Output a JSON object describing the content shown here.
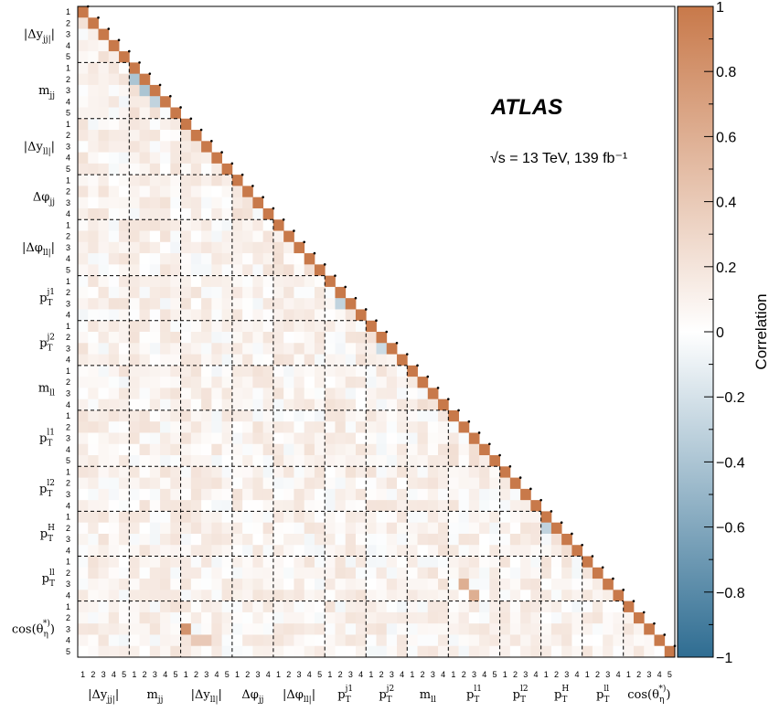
{
  "chart_data": {
    "type": "heatmap",
    "experiment": "ATLAS",
    "energy_lumi": "√s = 13 TeV, 139 fb⁻¹",
    "colorbar_label": "Correlation",
    "zlim": [
      -1,
      1
    ],
    "colorbar_ticks": [
      "1",
      "0.8",
      "0.6",
      "0.4",
      "0.2",
      "0",
      "−0.2",
      "−0.4",
      "−0.6",
      "−0.8",
      "−1"
    ],
    "colors": {
      "positive": "#c8794a",
      "zero": "#ffffff",
      "negative": "#2f6d92"
    },
    "triangle": "lower",
    "diagonal": 1.0,
    "groups": [
      {
        "label": "|Δy_jj|",
        "bins": 5
      },
      {
        "label": "m_jj",
        "bins": 5
      },
      {
        "label": "|Δy_ll|",
        "bins": 5
      },
      {
        "label": "Δφ_jj",
        "bins": 4
      },
      {
        "label": "|Δφ_ll|",
        "bins": 5
      },
      {
        "label": "p_T^j1",
        "bins": 4
      },
      {
        "label": "p_T^j2",
        "bins": 4
      },
      {
        "label": "m_ll",
        "bins": 4
      },
      {
        "label": "p_T^l1",
        "bins": 5
      },
      {
        "label": "p_T^l2",
        "bins": 4
      },
      {
        "label": "p_T^H",
        "bins": 4
      },
      {
        "label": "p_T^ll",
        "bins": 4
      },
      {
        "label": "cos(θ_η^*)",
        "bins": 5
      }
    ],
    "notable_offdiagonal": [
      {
        "row_group": 1,
        "row_bin": 2,
        "col_group": 1,
        "col_bin": 1,
        "value": -0.4
      },
      {
        "row_group": 1,
        "row_bin": 3,
        "col_group": 1,
        "col_bin": 2,
        "value": -0.4
      },
      {
        "row_group": 1,
        "row_bin": 4,
        "col_group": 1,
        "col_bin": 3,
        "value": -0.3
      },
      {
        "row_group": 5,
        "row_bin": 3,
        "col_group": 5,
        "col_bin": 2,
        "value": -0.3
      },
      {
        "row_group": 6,
        "row_bin": 3,
        "col_group": 6,
        "col_bin": 2,
        "value": -0.25
      },
      {
        "row_group": 10,
        "row_bin": 2,
        "col_group": 10,
        "col_bin": 1,
        "value": -0.3
      },
      {
        "row_group": 12,
        "row_bin": 3,
        "col_group": 2,
        "col_bin": 1,
        "value": 0.8
      },
      {
        "row_group": 12,
        "row_bin": 4,
        "col_group": 2,
        "col_bin": 2,
        "value": 0.4
      },
      {
        "row_group": 12,
        "row_bin": 4,
        "col_group": 2,
        "col_bin": 3,
        "value": 0.4
      },
      {
        "row_group": 11,
        "row_bin": 3,
        "col_group": 8,
        "col_bin": 2,
        "value": 0.6
      },
      {
        "row_group": 11,
        "row_bin": 4,
        "col_group": 8,
        "col_bin": 3,
        "value": 0.6
      }
    ]
  }
}
